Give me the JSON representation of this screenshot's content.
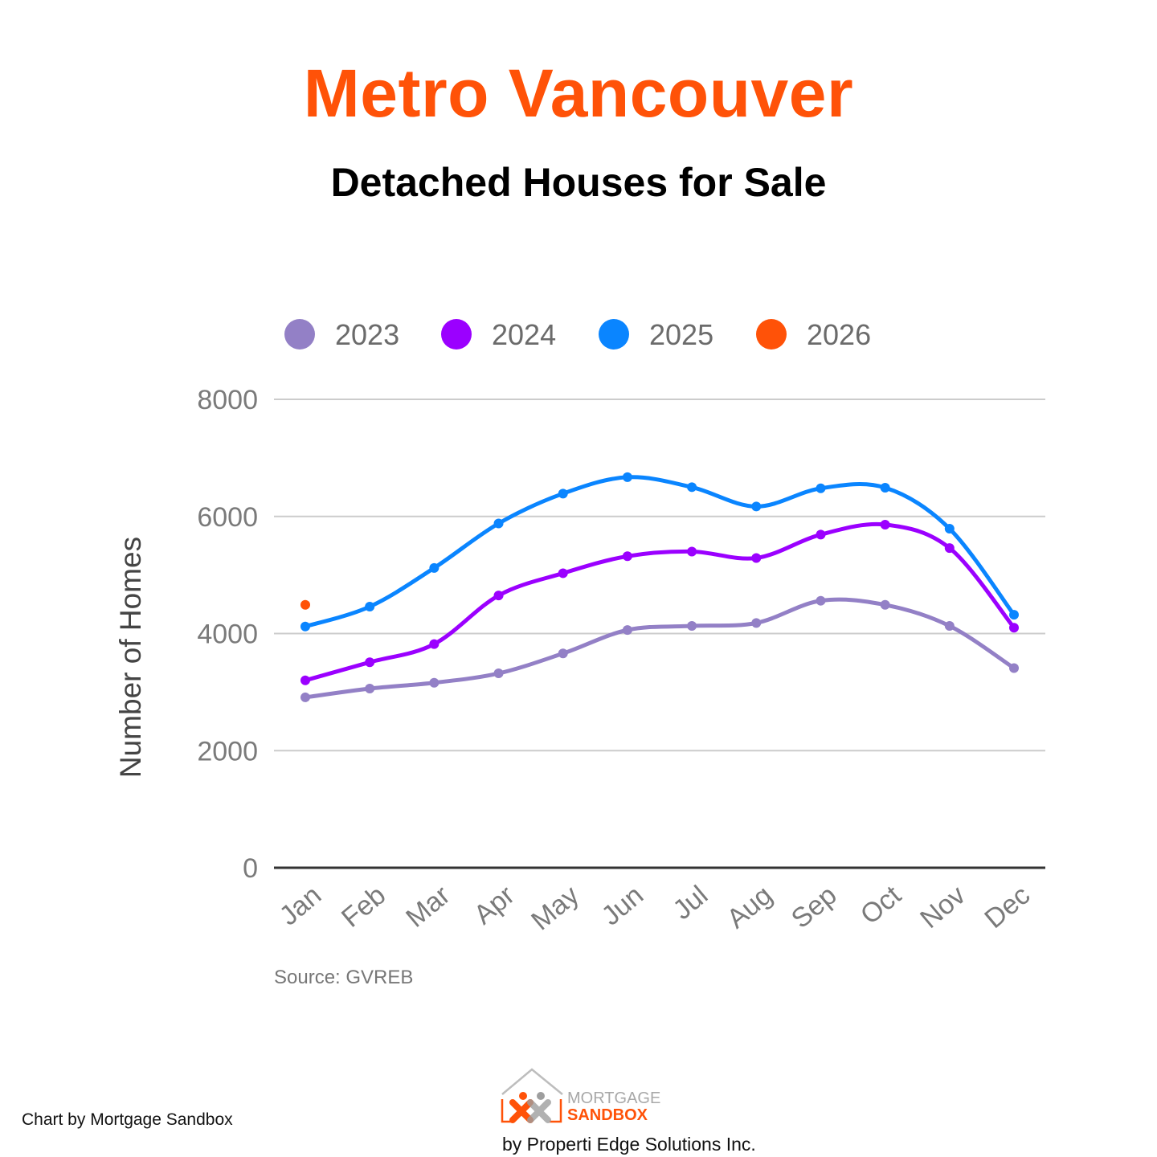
{
  "title": "Metro Vancouver",
  "subtitle": "Detached Houses for Sale",
  "footer": {
    "credit": "Chart by Mortgage Sandbox",
    "logo_line1": "MORTGAGE",
    "logo_line2": "SANDBOX",
    "company": "by Properti Edge Solutions Inc."
  },
  "colors": {
    "title": "#ff5208",
    "series_2023": "#9380c6",
    "series_2024": "#9b00ff",
    "series_2025": "#0a85ff",
    "series_2026": "#ff5208"
  },
  "chart_data": {
    "type": "line",
    "title": "",
    "xlabel": "",
    "ylabel": "Number of Homes",
    "source": "Source: GVREB",
    "categories": [
      "Jan",
      "Feb",
      "Mar",
      "Apr",
      "May",
      "Jun",
      "Jul",
      "Aug",
      "Sep",
      "Oct",
      "Nov",
      "Dec"
    ],
    "ylim": [
      0,
      8000
    ],
    "yticks": [
      0,
      2000,
      4000,
      6000,
      8000
    ],
    "grid": true,
    "legend_position": "top",
    "series": [
      {
        "name": "2023",
        "color": "#9380c6",
        "values": [
          2910,
          3060,
          3160,
          3320,
          3660,
          4060,
          4130,
          4180,
          4560,
          4490,
          4130,
          3410
        ]
      },
      {
        "name": "2024",
        "color": "#9b00ff",
        "values": [
          3200,
          3510,
          3820,
          4650,
          5030,
          5320,
          5400,
          5290,
          5690,
          5860,
          5460,
          4100
        ]
      },
      {
        "name": "2025",
        "color": "#0a85ff",
        "values": [
          4120,
          4460,
          5120,
          5880,
          6390,
          6670,
          6500,
          6170,
          6480,
          6490,
          5790,
          4320
        ]
      },
      {
        "name": "2026",
        "color": "#ff5208",
        "values": [
          4490,
          null,
          null,
          null,
          null,
          null,
          null,
          null,
          null,
          null,
          null,
          null
        ]
      }
    ]
  }
}
